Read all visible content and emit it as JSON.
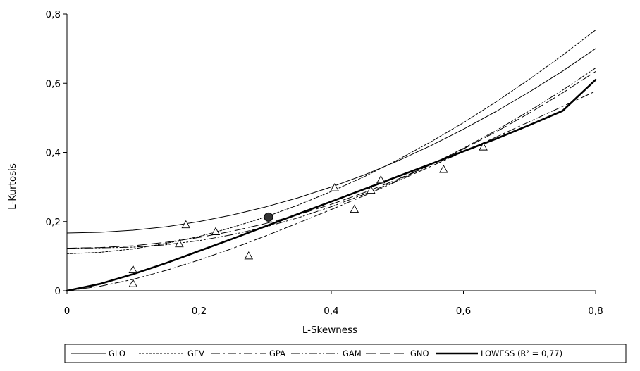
{
  "chart_data": {
    "type": "line",
    "title": "",
    "xlabel": "L-Skewness",
    "ylabel": "L-Kurtosis",
    "xlim": [
      0,
      0.8
    ],
    "ylim": [
      0,
      0.8
    ],
    "x_ticks": [
      "0",
      "0,2",
      "0,4",
      "0,6",
      "0,8"
    ],
    "y_ticks": [
      "0",
      "0,2",
      "0,4",
      "0,6",
      "0,8"
    ],
    "grid": false,
    "legend_position": "bottom",
    "series": [
      {
        "name": "GLO",
        "dash": "",
        "width": 1,
        "x": [
          0,
          0.05,
          0.1,
          0.15,
          0.2,
          0.25,
          0.3,
          0.35,
          0.4,
          0.45,
          0.5,
          0.55,
          0.6,
          0.65,
          0.7,
          0.75,
          0.8
        ],
        "y": [
          0.167,
          0.169,
          0.175,
          0.185,
          0.2,
          0.219,
          0.242,
          0.269,
          0.3,
          0.335,
          0.375,
          0.419,
          0.467,
          0.519,
          0.575,
          0.635,
          0.7
        ]
      },
      {
        "name": "GEV",
        "dash": "3,2",
        "width": 1,
        "x": [
          0,
          0.05,
          0.1,
          0.15,
          0.2,
          0.25,
          0.3,
          0.35,
          0.4,
          0.45,
          0.5,
          0.55,
          0.6,
          0.65,
          0.7,
          0.75,
          0.8
        ],
        "y": [
          0.107,
          0.111,
          0.121,
          0.137,
          0.157,
          0.183,
          0.213,
          0.248,
          0.287,
          0.33,
          0.378,
          0.43,
          0.486,
          0.547,
          0.612,
          0.681,
          0.754
        ]
      },
      {
        "name": "GPA",
        "dash": "12,4,3,4",
        "width": 1,
        "x": [
          0,
          0.05,
          0.1,
          0.15,
          0.2,
          0.25,
          0.3,
          0.35,
          0.4,
          0.45,
          0.5,
          0.55,
          0.6,
          0.65,
          0.7,
          0.75,
          0.8
        ],
        "y": [
          0,
          0.013,
          0.033,
          0.059,
          0.089,
          0.122,
          0.158,
          0.196,
          0.235,
          0.275,
          0.317,
          0.359,
          0.402,
          0.445,
          0.489,
          0.533,
          0.577
        ]
      },
      {
        "name": "GAM",
        "dash": "12,3,2,3,2,3",
        "width": 1,
        "x": [
          0,
          0.05,
          0.1,
          0.15,
          0.2,
          0.25,
          0.3,
          0.35,
          0.4,
          0.45,
          0.5,
          0.55,
          0.6,
          0.65,
          0.7,
          0.75,
          0.8
        ],
        "y": [
          0.123,
          0.124,
          0.126,
          0.133,
          0.145,
          0.162,
          0.184,
          0.211,
          0.243,
          0.279,
          0.319,
          0.364,
          0.412,
          0.464,
          0.52,
          0.58,
          0.644
        ]
      },
      {
        "name": "GNO",
        "dash": "14,6",
        "width": 1,
        "x": [
          0,
          0.05,
          0.1,
          0.15,
          0.2,
          0.25,
          0.3,
          0.35,
          0.4,
          0.45,
          0.5,
          0.55,
          0.6,
          0.65,
          0.7,
          0.75,
          0.8
        ],
        "y": [
          0.123,
          0.125,
          0.13,
          0.14,
          0.154,
          0.172,
          0.194,
          0.22,
          0.25,
          0.284,
          0.322,
          0.364,
          0.41,
          0.46,
          0.514,
          0.572,
          0.634
        ]
      },
      {
        "name": "LOWESS (R² = 0,77)",
        "dash": "",
        "width": 2.6,
        "x": [
          0,
          0.05,
          0.1,
          0.15,
          0.2,
          0.25,
          0.3,
          0.35,
          0.4,
          0.45,
          0.5,
          0.55,
          0.6,
          0.65,
          0.7,
          0.75,
          0.8
        ],
        "y": [
          0,
          0.02,
          0.048,
          0.08,
          0.115,
          0.15,
          0.186,
          0.222,
          0.258,
          0.294,
          0.33,
          0.366,
          0.403,
          0.44,
          0.479,
          0.52,
          0.61
        ]
      }
    ],
    "observations": {
      "marker": "triangle",
      "x": [
        0.1,
        0.1,
        0.18,
        0.17,
        0.225,
        0.275,
        0.405,
        0.435,
        0.46,
        0.475,
        0.57,
        0.63
      ],
      "y": [
        0.02,
        0.06,
        0.19,
        0.135,
        0.17,
        0.1,
        0.297,
        0.235,
        0.29,
        0.32,
        0.35,
        0.415
      ]
    },
    "regional_average": {
      "marker": "filled-circle",
      "x": 0.305,
      "y": 0.213
    }
  }
}
